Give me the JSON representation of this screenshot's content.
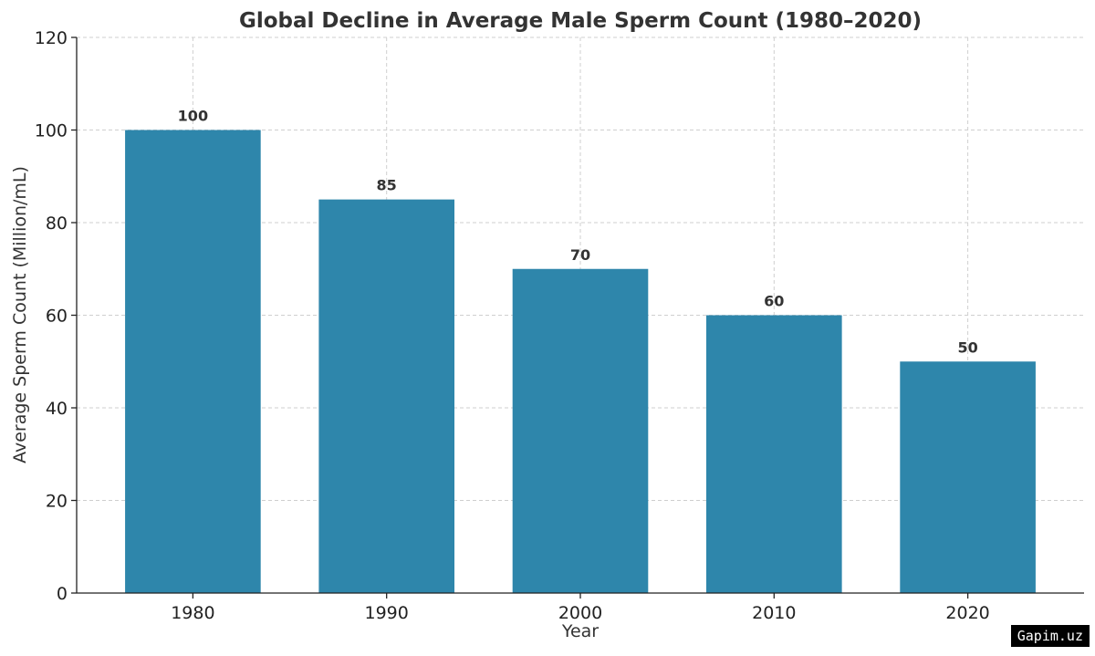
{
  "chart_data": {
    "type": "bar",
    "title": "Global Decline in Average Male Sperm Count (1980–2020)",
    "xlabel": "Year",
    "ylabel": "Average Sperm Count (Million/mL)",
    "categories": [
      "1980",
      "1990",
      "2000",
      "2010",
      "2020"
    ],
    "values": [
      100,
      85,
      70,
      60,
      50
    ],
    "data_labels": [
      "100",
      "85",
      "70",
      "60",
      "50"
    ],
    "ylim": [
      0,
      120
    ],
    "yticks": [
      0,
      20,
      40,
      60,
      80,
      100,
      120
    ],
    "ytick_labels": [
      "0",
      "20",
      "40",
      "60",
      "80",
      "100",
      "120"
    ],
    "grid": true,
    "bar_color": "#2e86ab"
  },
  "watermark": "Gapim.uz"
}
